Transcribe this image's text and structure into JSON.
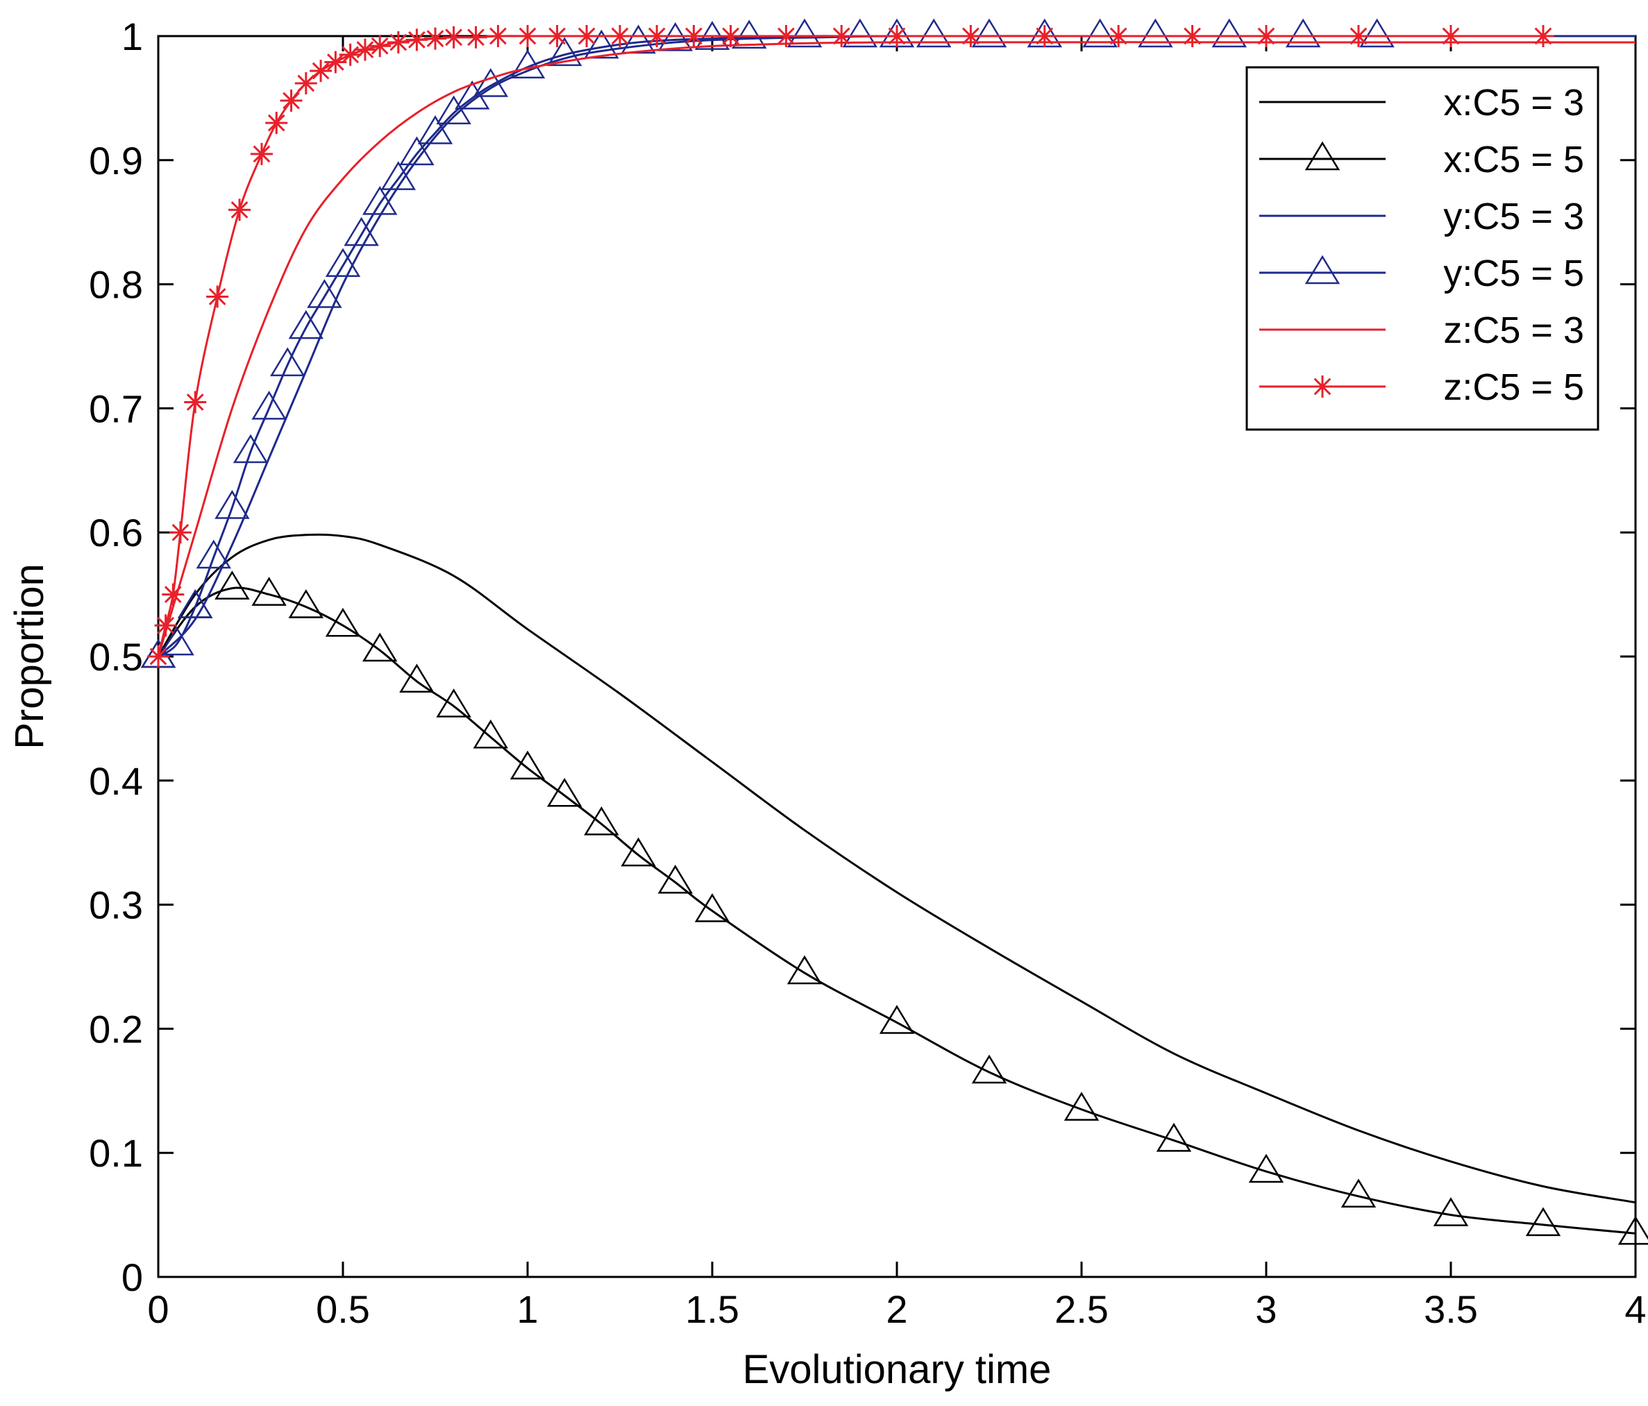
{
  "chart_data": {
    "type": "line",
    "xlabel": "Evolutionary time",
    "ylabel": "Proportion",
    "xlim": [
      0,
      4
    ],
    "ylim": [
      0,
      1
    ],
    "xticks": [
      "0",
      "0.5",
      "1",
      "1.5",
      "2",
      "2.5",
      "3",
      "3.5",
      "4"
    ],
    "yticks": [
      "0",
      "0.1",
      "0.2",
      "0.3",
      "0.4",
      "0.5",
      "0.6",
      "0.7",
      "0.8",
      "0.9",
      "1"
    ],
    "grid": false,
    "legend_position": "top-right",
    "series": [
      {
        "name": "x:C5 = 3",
        "color": "#000000",
        "marker": "none",
        "x": [
          0,
          0.1,
          0.2,
          0.3,
          0.4,
          0.5,
          0.6,
          0.8,
          1.0,
          1.25,
          1.5,
          1.75,
          2.0,
          2.25,
          2.5,
          2.75,
          3.0,
          3.25,
          3.5,
          3.75,
          4.0
        ],
        "y": [
          0.5,
          0.55,
          0.58,
          0.594,
          0.598,
          0.597,
          0.59,
          0.565,
          0.522,
          0.47,
          0.415,
          0.36,
          0.31,
          0.265,
          0.222,
          0.18,
          0.148,
          0.118,
          0.093,
          0.073,
          0.06
        ]
      },
      {
        "name": "x:C5 = 5",
        "color": "#000000",
        "marker": "triangle",
        "x": [
          0,
          0.1,
          0.2,
          0.3,
          0.4,
          0.5,
          0.6,
          0.7,
          0.8,
          0.9,
          1.0,
          1.1,
          1.2,
          1.3,
          1.4,
          1.5,
          1.75,
          2.0,
          2.25,
          2.5,
          2.75,
          3.0,
          3.25,
          3.5,
          3.75,
          4.0
        ],
        "y": [
          0.5,
          0.54,
          0.555,
          0.55,
          0.54,
          0.525,
          0.505,
          0.48,
          0.46,
          0.435,
          0.41,
          0.388,
          0.365,
          0.34,
          0.318,
          0.295,
          0.245,
          0.205,
          0.165,
          0.135,
          0.11,
          0.085,
          0.065,
          0.05,
          0.042,
          0.035
        ]
      },
      {
        "name": "y:C5 = 3",
        "color": "#1f2a8c",
        "marker": "none",
        "x": [
          0,
          0.1,
          0.2,
          0.3,
          0.4,
          0.5,
          0.6,
          0.7,
          0.8,
          0.9,
          1.0,
          1.1,
          1.2,
          1.4,
          1.6,
          1.8,
          2.0,
          2.5,
          3.0,
          4.0
        ],
        "y": [
          0.5,
          0.53,
          0.59,
          0.66,
          0.73,
          0.8,
          0.855,
          0.9,
          0.935,
          0.958,
          0.972,
          0.982,
          0.988,
          0.995,
          0.998,
          0.999,
          1.0,
          1.0,
          1.0,
          1.0
        ]
      },
      {
        "name": "y:C5 = 5",
        "color": "#1f2a8c",
        "marker": "triangle",
        "x": [
          0,
          0.05,
          0.1,
          0.15,
          0.2,
          0.25,
          0.3,
          0.35,
          0.4,
          0.45,
          0.5,
          0.55,
          0.6,
          0.65,
          0.7,
          0.75,
          0.8,
          0.85,
          0.9,
          1.0,
          1.1,
          1.2,
          1.3,
          1.4,
          1.5,
          1.6,
          1.75,
          1.9,
          2.0,
          2.1,
          2.25,
          2.4,
          2.55,
          2.7,
          2.9,
          3.1,
          3.3
        ],
        "y": [
          0.5,
          0.51,
          0.54,
          0.58,
          0.62,
          0.665,
          0.7,
          0.735,
          0.765,
          0.79,
          0.815,
          0.84,
          0.865,
          0.885,
          0.905,
          0.922,
          0.938,
          0.95,
          0.96,
          0.975,
          0.985,
          0.991,
          0.995,
          0.997,
          0.998,
          0.999,
          1.0,
          1.0,
          1.0,
          1.0,
          1.0,
          1.0,
          1.0,
          1.0,
          1.0,
          1.0,
          1.0
        ]
      },
      {
        "name": "z:C5 = 3",
        "color": "#e8202a",
        "marker": "none",
        "x": [
          0,
          0.1,
          0.2,
          0.3,
          0.4,
          0.5,
          0.6,
          0.7,
          0.8,
          0.9,
          1.0,
          1.2,
          1.4,
          1.6,
          2.0,
          3.0,
          4.0
        ],
        "y": [
          0.5,
          0.6,
          0.7,
          0.78,
          0.845,
          0.885,
          0.915,
          0.938,
          0.955,
          0.966,
          0.974,
          0.984,
          0.99,
          0.993,
          0.995,
          0.995,
          0.995
        ]
      },
      {
        "name": "z:C5 = 5",
        "color": "#e8202a",
        "marker": "star",
        "x": [
          0,
          0.02,
          0.04,
          0.06,
          0.1,
          0.16,
          0.22,
          0.28,
          0.32,
          0.36,
          0.4,
          0.44,
          0.48,
          0.52,
          0.56,
          0.6,
          0.65,
          0.7,
          0.75,
          0.8,
          0.86,
          0.92,
          1.0,
          1.08,
          1.16,
          1.25,
          1.35,
          1.45,
          1.55,
          1.7,
          1.85,
          2.0,
          2.2,
          2.4,
          2.6,
          2.8,
          3.0,
          3.25,
          3.5,
          3.75
        ],
        "y": [
          0.5,
          0.525,
          0.55,
          0.6,
          0.705,
          0.79,
          0.86,
          0.905,
          0.93,
          0.948,
          0.962,
          0.972,
          0.979,
          0.985,
          0.989,
          0.992,
          0.995,
          0.997,
          0.998,
          0.999,
          0.999,
          1.0,
          1.0,
          1.0,
          1.0,
          1.0,
          1.0,
          1.0,
          1.0,
          1.0,
          1.0,
          1.0,
          1.0,
          1.0,
          1.0,
          1.0,
          1.0,
          1.0,
          1.0,
          1.0
        ]
      }
    ]
  }
}
